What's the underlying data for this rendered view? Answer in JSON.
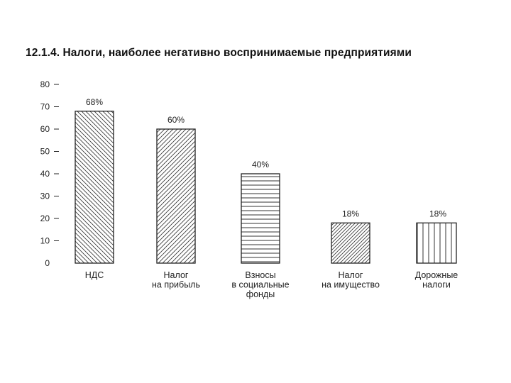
{
  "chart_data": {
    "type": "bar",
    "title": "12.1.4. Налоги, наиболее негативно воспринимаемые предприятиями",
    "xlabel": "",
    "ylabel": "",
    "ylim": [
      0,
      80
    ],
    "yticks": [
      0,
      10,
      20,
      30,
      40,
      50,
      60,
      70,
      80
    ],
    "grid": false,
    "categories": [
      [
        "НДС"
      ],
      [
        "Налог",
        "на прибыль"
      ],
      [
        "Взносы",
        "в социальные",
        "фонды"
      ],
      [
        "Налог",
        "на имущество"
      ],
      [
        "Дорожные",
        "налоги"
      ]
    ],
    "values": [
      68,
      60,
      40,
      18,
      18
    ],
    "data_labels": [
      "68%",
      "60%",
      "40%",
      "18%",
      "18%"
    ],
    "patterns": [
      "hatch-back",
      "hatch-forward",
      "horizontal-lines",
      "hatch-forward-dense",
      "vertical-lines"
    ],
    "colors": {
      "ink": "#222222",
      "background": "#ffffff"
    }
  }
}
